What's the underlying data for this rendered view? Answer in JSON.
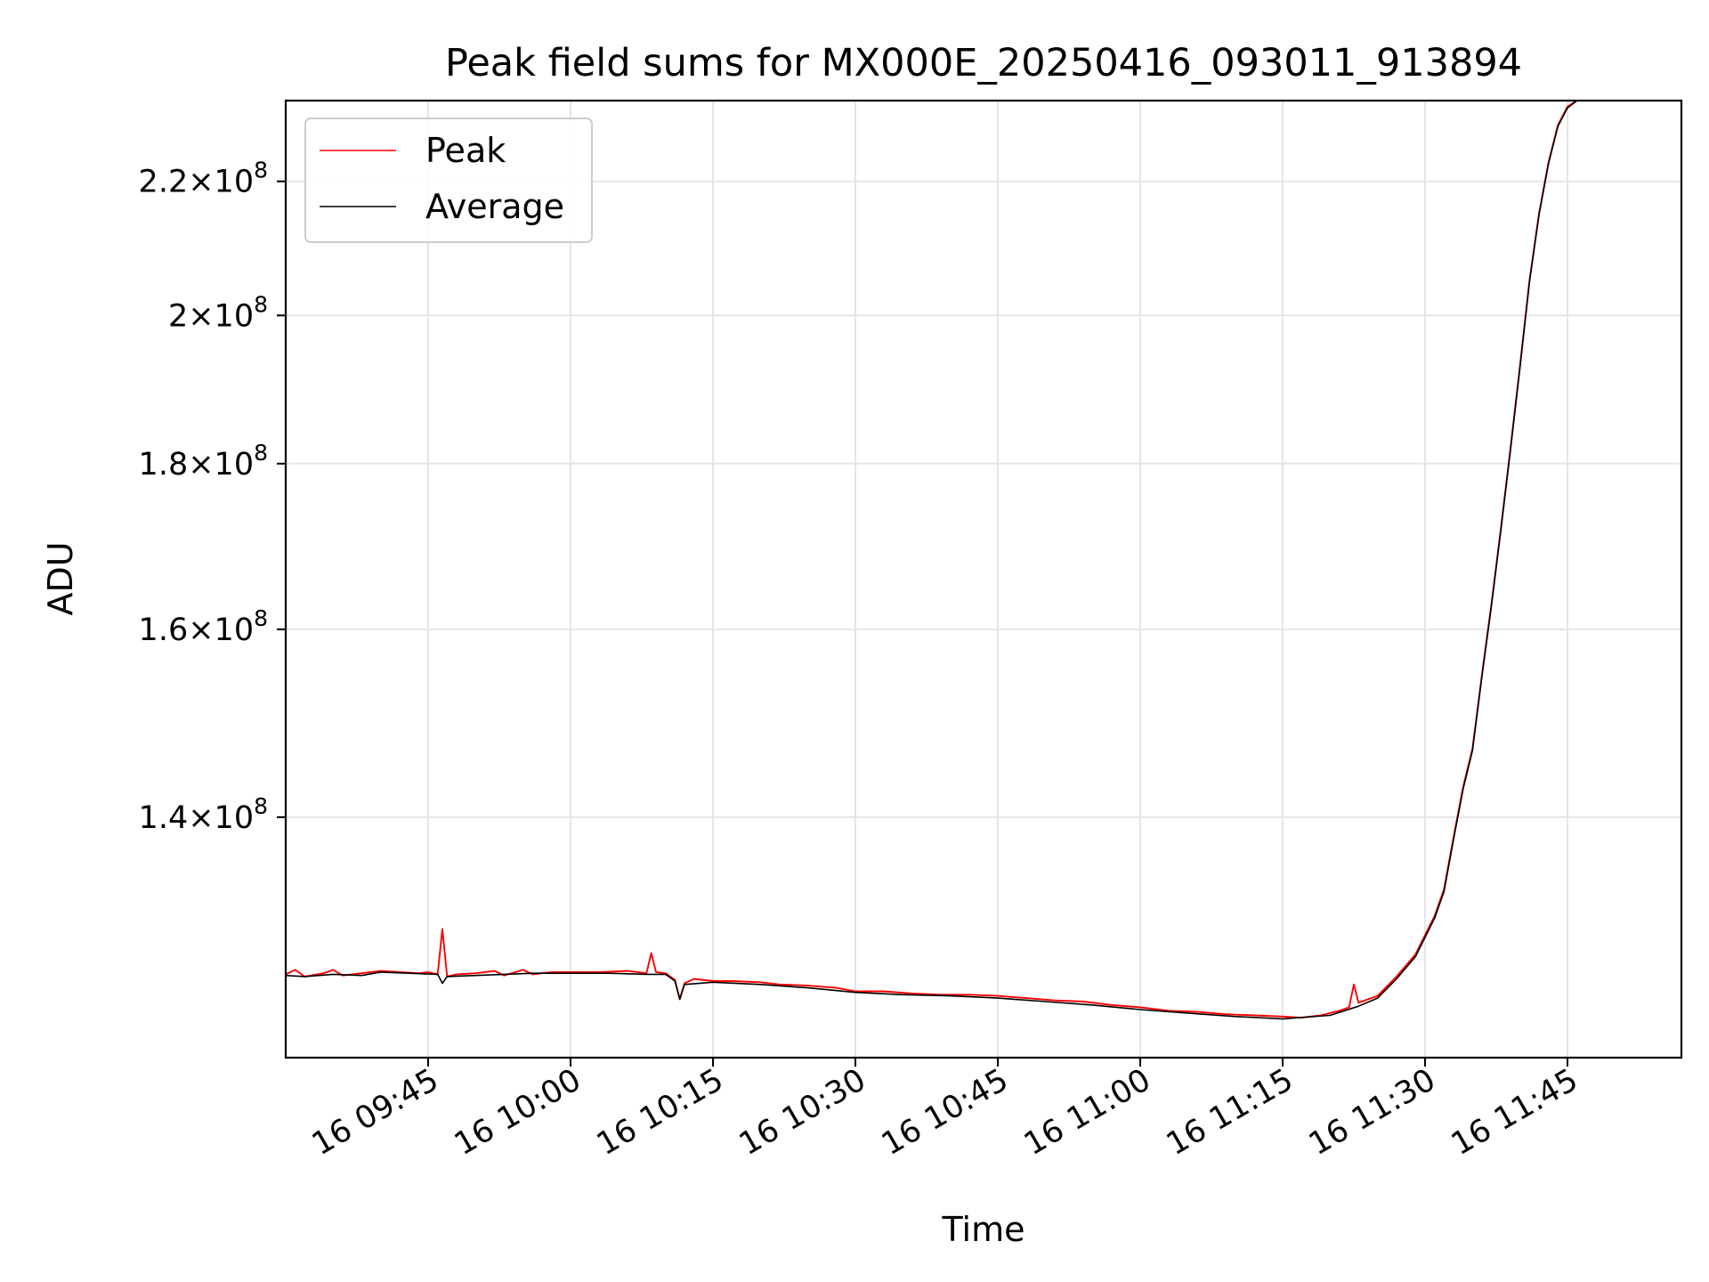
{
  "chart_data": {
    "type": "line",
    "title": "Peak field sums for MX000E_20250416_093011_913894",
    "xlabel": "Time",
    "ylabel": "ADU",
    "y_scale": "log",
    "grid": true,
    "legend_position": "top-left",
    "xlim": [
      "2025-04-16 09:30",
      "2025-04-16 11:57"
    ],
    "ylim": [
      118000000,
      233000000
    ],
    "x_ticks": [
      {
        "t": "2025-04-16 09:45",
        "label": "16 09:45"
      },
      {
        "t": "2025-04-16 10:00",
        "label": "16 10:00"
      },
      {
        "t": "2025-04-16 10:15",
        "label": "16 10:15"
      },
      {
        "t": "2025-04-16 10:30",
        "label": "16 10:30"
      },
      {
        "t": "2025-04-16 10:45",
        "label": "16 10:45"
      },
      {
        "t": "2025-04-16 11:00",
        "label": "16 11:00"
      },
      {
        "t": "2025-04-16 11:15",
        "label": "16 11:15"
      },
      {
        "t": "2025-04-16 11:30",
        "label": "16 11:30"
      },
      {
        "t": "2025-04-16 11:45",
        "label": "16 11:45"
      }
    ],
    "y_ticks": [
      {
        "value": 140000000,
        "mantissa": "1.4",
        "exponent": "8"
      },
      {
        "value": 160000000,
        "mantissa": "1.6",
        "exponent": "8"
      },
      {
        "value": 180000000,
        "mantissa": "1.8",
        "exponent": "8"
      },
      {
        "value": 200000000,
        "mantissa": "2",
        "exponent": "8"
      },
      {
        "value": 220000000,
        "mantissa": "2.2",
        "exponent": "8"
      }
    ],
    "y_tick_times": "×10",
    "series": [
      {
        "name": "Peak",
        "color": "#ff0000",
        "points": [
          [
            "2025-04-16 09:30",
            125200000
          ],
          [
            "2025-04-16 09:31",
            125600000
          ],
          [
            "2025-04-16 09:32",
            125000000
          ],
          [
            "2025-04-16 09:34",
            125300000
          ],
          [
            "2025-04-16 09:35",
            125600000
          ],
          [
            "2025-04-16 09:36",
            125100000
          ],
          [
            "2025-04-16 09:38",
            125300000
          ],
          [
            "2025-04-16 09:40",
            125500000
          ],
          [
            "2025-04-16 09:42",
            125400000
          ],
          [
            "2025-04-16 09:44",
            125300000
          ],
          [
            "2025-04-16 09:45",
            125400000
          ],
          [
            "2025-04-16 09:46",
            125200000
          ],
          [
            "2025-04-16 09:46:30",
            129300000
          ],
          [
            "2025-04-16 09:47",
            125000000
          ],
          [
            "2025-04-16 09:48",
            125200000
          ],
          [
            "2025-04-16 09:50",
            125300000
          ],
          [
            "2025-04-16 09:52",
            125500000
          ],
          [
            "2025-04-16 09:53",
            125100000
          ],
          [
            "2025-04-16 09:55",
            125600000
          ],
          [
            "2025-04-16 09:56",
            125200000
          ],
          [
            "2025-04-16 09:58",
            125400000
          ],
          [
            "2025-04-16 10:00",
            125400000
          ],
          [
            "2025-04-16 10:03",
            125400000
          ],
          [
            "2025-04-16 10:06",
            125500000
          ],
          [
            "2025-04-16 10:08",
            125300000
          ],
          [
            "2025-04-16 10:08:30",
            127100000
          ],
          [
            "2025-04-16 10:09",
            125400000
          ],
          [
            "2025-04-16 10:10",
            125300000
          ],
          [
            "2025-04-16 10:11",
            124700000
          ],
          [
            "2025-04-16 10:11:30",
            123000000
          ],
          [
            "2025-04-16 10:12",
            124400000
          ],
          [
            "2025-04-16 10:13",
            124800000
          ],
          [
            "2025-04-16 10:15",
            124600000
          ],
          [
            "2025-04-16 10:17",
            124600000
          ],
          [
            "2025-04-16 10:20",
            124500000
          ],
          [
            "2025-04-16 10:22",
            124300000
          ],
          [
            "2025-04-16 10:25",
            124200000
          ],
          [
            "2025-04-16 10:28",
            124000000
          ],
          [
            "2025-04-16 10:30",
            123700000
          ],
          [
            "2025-04-16 10:33",
            123700000
          ],
          [
            "2025-04-16 10:36",
            123500000
          ],
          [
            "2025-04-16 10:39",
            123400000
          ],
          [
            "2025-04-16 10:42",
            123400000
          ],
          [
            "2025-04-16 10:45",
            123300000
          ],
          [
            "2025-04-16 10:48",
            123100000
          ],
          [
            "2025-04-16 10:51",
            122900000
          ],
          [
            "2025-04-16 10:54",
            122800000
          ],
          [
            "2025-04-16 10:57",
            122500000
          ],
          [
            "2025-04-16 11:00",
            122300000
          ],
          [
            "2025-04-16 11:03",
            122000000
          ],
          [
            "2025-04-16 11:06",
            121900000
          ],
          [
            "2025-04-16 11:09",
            121700000
          ],
          [
            "2025-04-16 11:12",
            121600000
          ],
          [
            "2025-04-16 11:15",
            121500000
          ],
          [
            "2025-04-16 11:17",
            121400000
          ],
          [
            "2025-04-16 11:19",
            121600000
          ],
          [
            "2025-04-16 11:21",
            122000000
          ],
          [
            "2025-04-16 11:22",
            122300000
          ],
          [
            "2025-04-16 11:22:30",
            124300000
          ],
          [
            "2025-04-16 11:23",
            122700000
          ],
          [
            "2025-04-16 11:25",
            123300000
          ],
          [
            "2025-04-16 11:27",
            125000000
          ],
          [
            "2025-04-16 11:29",
            127000000
          ],
          [
            "2025-04-16 11:31",
            130500000
          ],
          [
            "2025-04-16 11:32",
            133000000
          ],
          [
            "2025-04-16 11:33",
            138000000
          ],
          [
            "2025-04-16 11:34",
            143000000
          ],
          [
            "2025-04-16 11:35",
            147000000
          ],
          [
            "2025-04-16 11:36",
            155000000
          ],
          [
            "2025-04-16 11:37",
            163000000
          ],
          [
            "2025-04-16 11:38",
            172000000
          ],
          [
            "2025-04-16 11:39",
            182000000
          ],
          [
            "2025-04-16 11:40",
            193000000
          ],
          [
            "2025-04-16 11:41",
            205000000
          ],
          [
            "2025-04-16 11:42",
            215000000
          ],
          [
            "2025-04-16 11:43",
            223000000
          ],
          [
            "2025-04-16 11:44",
            229000000
          ],
          [
            "2025-04-16 11:45",
            232000000
          ],
          [
            "2025-04-16 11:46",
            233000000
          ]
        ]
      },
      {
        "name": "Average",
        "color": "#000000",
        "points": [
          [
            "2025-04-16 09:30",
            125100000
          ],
          [
            "2025-04-16 09:32",
            125000000
          ],
          [
            "2025-04-16 09:35",
            125200000
          ],
          [
            "2025-04-16 09:38",
            125100000
          ],
          [
            "2025-04-16 09:40",
            125400000
          ],
          [
            "2025-04-16 09:43",
            125300000
          ],
          [
            "2025-04-16 09:46",
            125200000
          ],
          [
            "2025-04-16 09:46:30",
            124400000
          ],
          [
            "2025-04-16 09:47",
            125000000
          ],
          [
            "2025-04-16 09:50",
            125100000
          ],
          [
            "2025-04-16 09:53",
            125200000
          ],
          [
            "2025-04-16 09:56",
            125300000
          ],
          [
            "2025-04-16 10:00",
            125300000
          ],
          [
            "2025-04-16 10:04",
            125300000
          ],
          [
            "2025-04-16 10:08",
            125200000
          ],
          [
            "2025-04-16 10:10",
            125200000
          ],
          [
            "2025-04-16 10:11",
            124600000
          ],
          [
            "2025-04-16 10:11:30",
            123000000
          ],
          [
            "2025-04-16 10:12",
            124300000
          ],
          [
            "2025-04-16 10:15",
            124500000
          ],
          [
            "2025-04-16 10:20",
            124300000
          ],
          [
            "2025-04-16 10:25",
            124000000
          ],
          [
            "2025-04-16 10:30",
            123600000
          ],
          [
            "2025-04-16 10:35",
            123400000
          ],
          [
            "2025-04-16 10:40",
            123300000
          ],
          [
            "2025-04-16 10:45",
            123100000
          ],
          [
            "2025-04-16 10:50",
            122800000
          ],
          [
            "2025-04-16 10:55",
            122500000
          ],
          [
            "2025-04-16 11:00",
            122100000
          ],
          [
            "2025-04-16 11:05",
            121800000
          ],
          [
            "2025-04-16 11:10",
            121500000
          ],
          [
            "2025-04-16 11:15",
            121300000
          ],
          [
            "2025-04-16 11:20",
            121600000
          ],
          [
            "2025-04-16 11:23",
            122400000
          ],
          [
            "2025-04-16 11:25",
            123100000
          ],
          [
            "2025-04-16 11:27",
            124800000
          ],
          [
            "2025-04-16 11:29",
            126800000
          ],
          [
            "2025-04-16 11:31",
            130300000
          ],
          [
            "2025-04-16 11:32",
            132800000
          ],
          [
            "2025-04-16 11:33",
            137800000
          ],
          [
            "2025-04-16 11:34",
            142800000
          ],
          [
            "2025-04-16 11:35",
            146800000
          ],
          [
            "2025-04-16 11:36",
            154800000
          ],
          [
            "2025-04-16 11:37",
            162800000
          ],
          [
            "2025-04-16 11:38",
            171800000
          ],
          [
            "2025-04-16 11:39",
            181800000
          ],
          [
            "2025-04-16 11:40",
            192800000
          ],
          [
            "2025-04-16 11:41",
            204800000
          ],
          [
            "2025-04-16 11:42",
            214800000
          ],
          [
            "2025-04-16 11:43",
            222800000
          ],
          [
            "2025-04-16 11:44",
            228800000
          ],
          [
            "2025-04-16 11:45",
            231800000
          ],
          [
            "2025-04-16 11:46",
            233000000
          ]
        ]
      }
    ]
  }
}
